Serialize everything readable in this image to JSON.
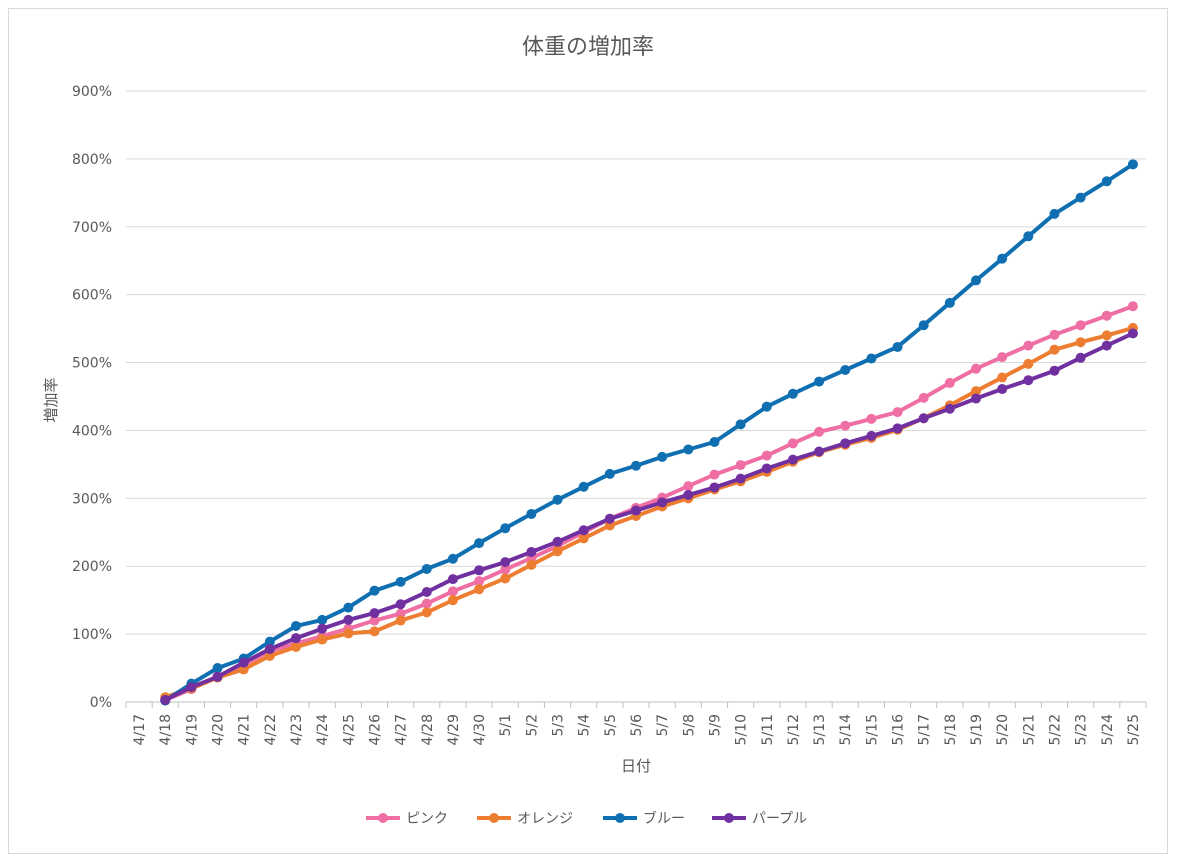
{
  "chart_data": {
    "type": "line",
    "title": "体重の増加率",
    "xlabel": "日付",
    "ylabel": "増加率",
    "ylim": [
      0,
      900
    ],
    "y_ticks": [
      "0%",
      "100%",
      "200%",
      "300%",
      "400%",
      "500%",
      "600%",
      "700%",
      "800%",
      "900%"
    ],
    "grid": true,
    "legend_position": "bottom",
    "categories": [
      "4/17",
      "4/18",
      "4/19",
      "4/20",
      "4/21",
      "4/22",
      "4/23",
      "4/24",
      "4/25",
      "4/26",
      "4/27",
      "4/28",
      "4/29",
      "4/30",
      "5/1",
      "5/2",
      "5/3",
      "5/4",
      "5/5",
      "5/6",
      "5/7",
      "5/8",
      "5/9",
      "5/10",
      "5/11",
      "5/12",
      "5/13",
      "5/14",
      "5/15",
      "5/16",
      "5/17",
      "5/18",
      "5/19",
      "5/20",
      "5/21",
      "5/22",
      "5/23",
      "5/24",
      "5/25"
    ],
    "series": [
      {
        "name": "ピンク",
        "color": "#ef6ea4",
        "values": [
          null,
          3,
          19,
          38,
          55,
          75,
          86,
          97,
          108,
          120,
          130,
          145,
          163,
          178,
          195,
          212,
          230,
          250,
          270,
          286,
          301,
          318,
          335,
          349,
          363,
          381,
          398,
          407,
          417,
          427,
          448,
          470,
          491,
          508,
          525,
          541,
          555,
          569,
          583
        ]
      },
      {
        "name": "オレンジ",
        "color": "#ed7d31",
        "values": [
          null,
          7,
          20,
          36,
          48,
          68,
          81,
          92,
          101,
          104,
          120,
          132,
          150,
          166,
          182,
          202,
          222,
          241,
          260,
          274,
          288,
          300,
          313,
          325,
          339,
          354,
          368,
          379,
          389,
          401,
          418,
          437,
          458,
          478,
          498,
          519,
          530,
          540,
          551
        ]
      },
      {
        "name": "ブルー",
        "color": "#0f6fb1",
        "values": [
          null,
          2,
          27,
          50,
          64,
          89,
          112,
          121,
          139,
          164,
          177,
          196,
          211,
          234,
          256,
          277,
          298,
          317,
          336,
          348,
          361,
          372,
          383,
          409,
          435,
          454,
          472,
          489,
          506,
          523,
          555,
          588,
          621,
          653,
          686,
          719,
          743,
          767,
          792
        ]
      },
      {
        "name": "パープル",
        "color": "#7030a0",
        "values": [
          null,
          3,
          22,
          37,
          58,
          78,
          94,
          108,
          121,
          131,
          144,
          162,
          181,
          194,
          206,
          221,
          236,
          253,
          270,
          282,
          294,
          305,
          316,
          329,
          344,
          357,
          369,
          381,
          392,
          403,
          418,
          432,
          447,
          461,
          474,
          488,
          507,
          525,
          543
        ]
      }
    ]
  }
}
